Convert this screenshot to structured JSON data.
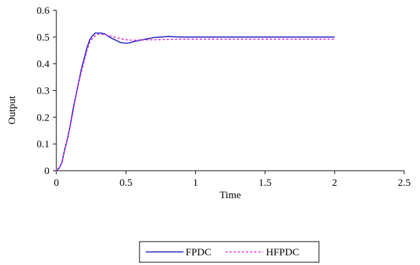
{
  "chart_data": {
    "type": "line",
    "title": "",
    "xlabel": "Time",
    "ylabel": "Output",
    "xlim": [
      0,
      2.5
    ],
    "ylim": [
      0,
      0.6
    ],
    "x_ticks": [
      0,
      0.5,
      1,
      1.5,
      2,
      2.5
    ],
    "x_tick_labels": [
      "0",
      "0.5",
      "1",
      "1.5",
      "2",
      "2.5"
    ],
    "y_ticks": [
      0,
      0.1,
      0.2,
      0.3,
      0.4,
      0.5,
      0.6
    ],
    "y_tick_labels": [
      "0",
      "0.1",
      "0.2",
      "0.3",
      "0.4",
      "0.5",
      "0.6"
    ],
    "grid": false,
    "legend_position": "bottom",
    "series": [
      {
        "name": "FPDC",
        "color": "#1f1fbf",
        "dash": "solid",
        "x": [
          0,
          0.02,
          0.04,
          0.06,
          0.08,
          0.1,
          0.12,
          0.14,
          0.16,
          0.18,
          0.2,
          0.22,
          0.24,
          0.26,
          0.28,
          0.3,
          0.32,
          0.34,
          0.36,
          0.38,
          0.4,
          0.42,
          0.44,
          0.46,
          0.48,
          0.5,
          0.52,
          0.55,
          0.6,
          0.65,
          0.7,
          0.75,
          0.8,
          0.85,
          0.9,
          1.0,
          1.5,
          2.0
        ],
        "y": [
          0,
          0.01,
          0.03,
          0.08,
          0.12,
          0.17,
          0.23,
          0.28,
          0.33,
          0.38,
          0.42,
          0.46,
          0.49,
          0.505,
          0.515,
          0.515,
          0.515,
          0.513,
          0.508,
          0.5,
          0.495,
          0.49,
          0.485,
          0.48,
          0.478,
          0.477,
          0.478,
          0.482,
          0.488,
          0.493,
          0.498,
          0.5,
          0.502,
          0.501,
          0.5,
          0.5,
          0.5,
          0.5
        ]
      },
      {
        "name": "HFPDC",
        "color": "#e01fe0",
        "dash": "dashed",
        "x": [
          0,
          0.02,
          0.04,
          0.06,
          0.08,
          0.1,
          0.12,
          0.14,
          0.16,
          0.18,
          0.2,
          0.22,
          0.24,
          0.26,
          0.28,
          0.3,
          0.32,
          0.34,
          0.36,
          0.38,
          0.4,
          0.42,
          0.44,
          0.46,
          0.48,
          0.5,
          0.55,
          0.6,
          0.7,
          0.8,
          0.9,
          1.0,
          1.5,
          2.0
        ],
        "y": [
          0,
          0.01,
          0.03,
          0.08,
          0.12,
          0.17,
          0.22,
          0.28,
          0.33,
          0.37,
          0.41,
          0.45,
          0.48,
          0.495,
          0.505,
          0.51,
          0.51,
          0.51,
          0.508,
          0.505,
          0.503,
          0.5,
          0.497,
          0.495,
          0.492,
          0.49,
          0.488,
          0.489,
          0.49,
          0.491,
          0.492,
          0.492,
          0.492,
          0.492
        ]
      }
    ]
  }
}
